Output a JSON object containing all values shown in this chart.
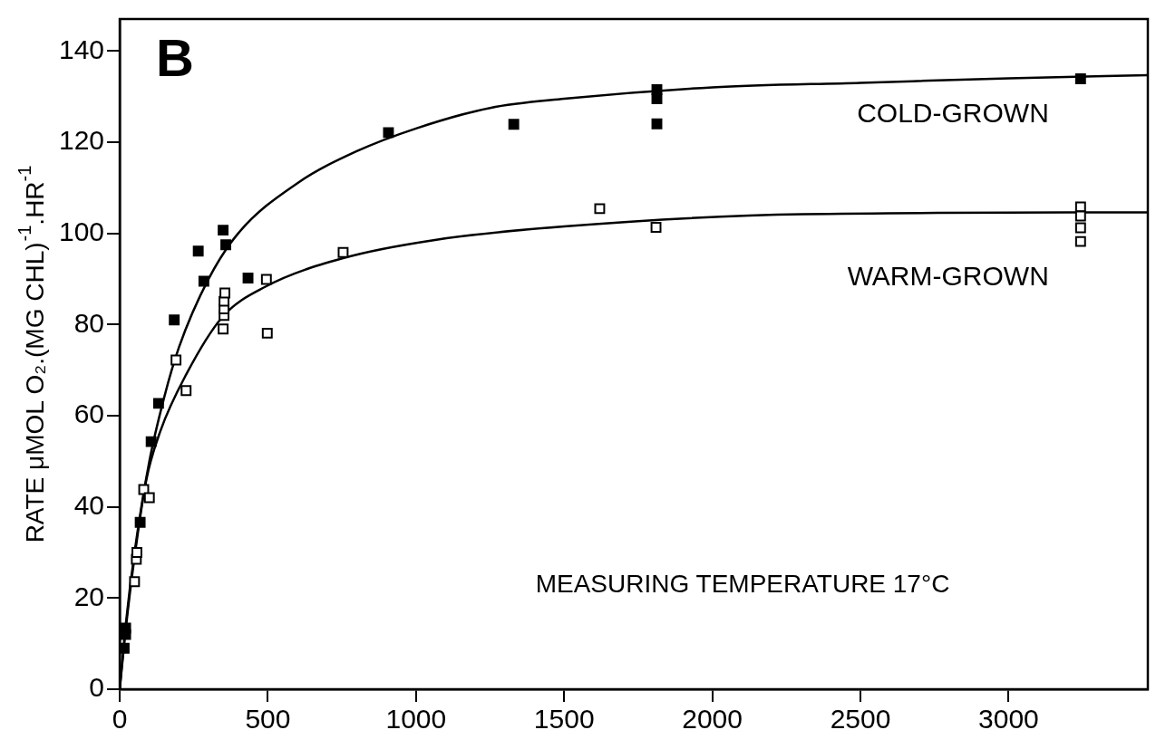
{
  "chart_data": {
    "type": "scatter",
    "ylabel": "RATE μMOL O₂.(MG CHL)$^{-1}$.HR$^{-1}$",
    "annotations": [
      "B",
      "MEASURING TEMPERATURE 17°C"
    ],
    "xlim": [
      0,
      3470
    ],
    "ylim": [
      0,
      147
    ],
    "xticks": [
      0,
      500,
      1000,
      1500,
      2000,
      2500,
      3000
    ],
    "yticks": [
      0,
      20,
      40,
      60,
      80,
      100,
      120,
      140
    ],
    "grid": false,
    "legend": false,
    "series": [
      {
        "name": "COLD-GROWN",
        "marker": "square",
        "color": "#000000",
        "x": [
          15,
          20,
          20,
          69,
          106,
          131,
          184,
          265,
          284,
          349,
          358,
          433,
          907,
          1330,
          1813,
          1813,
          1813,
          3243
        ],
        "values": [
          9,
          12,
          13.4,
          36.6,
          54.3,
          62.7,
          81,
          96.1,
          89.5,
          100.7,
          97.5,
          90.2,
          122.1,
          123.9,
          131.5,
          129.5,
          124,
          133.9
        ]
      },
      {
        "name": "WARM-GROWN",
        "marker": "square",
        "color": "#000000",
        "x": [
          50,
          56,
          58,
          81,
          100,
          190,
          224,
          349,
          352,
          352,
          352,
          355,
          495,
          498,
          754,
          1620,
          1810,
          3243,
          3243,
          3243,
          3243
        ],
        "values": [
          23.6,
          28.5,
          30,
          43.8,
          42,
          72.2,
          65.5,
          79,
          82,
          83.4,
          85.1,
          86.9,
          89.9,
          78.1,
          95.8,
          105.4,
          101.3,
          105.8,
          103.8,
          101.2,
          98.2
        ]
      },
      {
        "type": "line",
        "marker": "none",
        "color": "#000000",
        "x": [
          0,
          20,
          50,
          100,
          150,
          200,
          300,
          400,
          600,
          800,
          1000,
          1250,
          1500,
          2000,
          2500,
          3000,
          3470
        ],
        "values": [
          0,
          14,
          30,
          50,
          64,
          75,
          90,
          100,
          111,
          118,
          123,
          127.5,
          129.5,
          132,
          133,
          134,
          134.7
        ]
      },
      {
        "type": "line",
        "marker": "none",
        "color": "#000000",
        "x": [
          0,
          20,
          50,
          90,
          137,
          224,
          346,
          492,
          757,
          1059,
          1500,
          2305,
          3470
        ],
        "values": [
          0,
          13,
          29,
          46,
          56.6,
          69,
          81.6,
          88.3,
          94.6,
          98.5,
          101.5,
          104.2,
          104.6
        ]
      }
    ]
  }
}
